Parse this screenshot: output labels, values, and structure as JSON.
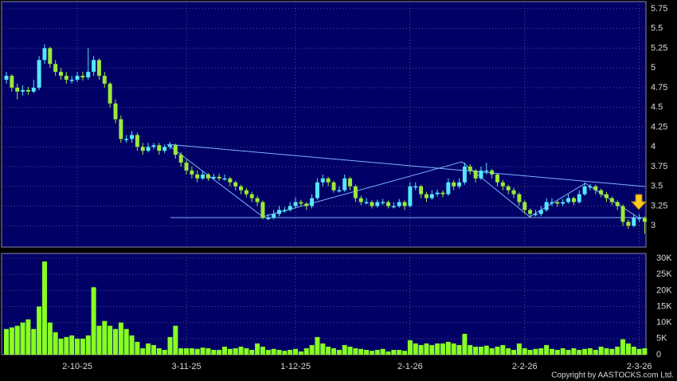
{
  "chart_data": {
    "type": "candlestick",
    "copyright": "Copyright by AASTOCKS.com Ltd.",
    "up_color": "#55e6ff",
    "down_color": "#9be83a",
    "volume_color": "#88ff22",
    "categories": [
      null,
      null,
      null,
      null,
      null,
      null,
      null,
      null,
      null,
      null,
      null,
      null,
      null,
      "2-10-25",
      null,
      null,
      null,
      null,
      null,
      null,
      null,
      null,
      null,
      null,
      null,
      null,
      null,
      null,
      null,
      null,
      null,
      null,
      null,
      "3-11-25",
      null,
      null,
      null,
      null,
      null,
      null,
      null,
      null,
      null,
      null,
      null,
      null,
      null,
      null,
      null,
      null,
      null,
      null,
      null,
      "1-12-25",
      null,
      null,
      null,
      null,
      null,
      null,
      null,
      null,
      null,
      null,
      null,
      null,
      null,
      null,
      null,
      null,
      null,
      null,
      null,
      null,
      "2-1-26",
      null,
      null,
      null,
      null,
      null,
      null,
      null,
      null,
      null,
      null,
      null,
      null,
      null,
      null,
      null,
      null,
      null,
      null,
      null,
      null,
      "2-2-26",
      null,
      null,
      null,
      null,
      null,
      null,
      null,
      null,
      null,
      null,
      null,
      null,
      null,
      null,
      null,
      null,
      null,
      null,
      null,
      null,
      "2-3-26",
      null
    ],
    "ohlc": [
      [
        4.85,
        4.95,
        4.8,
        4.9
      ],
      [
        4.9,
        4.92,
        4.7,
        4.75
      ],
      [
        4.75,
        4.8,
        4.6,
        4.7
      ],
      [
        4.7,
        4.78,
        4.65,
        4.72
      ],
      [
        4.72,
        4.76,
        4.66,
        4.7
      ],
      [
        4.7,
        4.85,
        4.68,
        4.75
      ],
      [
        4.75,
        5.15,
        4.72,
        5.1
      ],
      [
        5.1,
        5.3,
        5.05,
        5.25
      ],
      [
        5.25,
        5.27,
        5.0,
        5.05
      ],
      [
        5.05,
        5.1,
        4.9,
        4.95
      ],
      [
        4.95,
        5.0,
        4.85,
        4.9
      ],
      [
        4.9,
        4.95,
        4.8,
        4.85
      ],
      [
        4.85,
        4.9,
        4.8,
        4.85
      ],
      [
        4.85,
        4.95,
        4.82,
        4.9
      ],
      [
        4.9,
        4.95,
        4.84,
        4.88
      ],
      [
        4.88,
        5.25,
        4.85,
        4.95
      ],
      [
        4.95,
        5.15,
        4.9,
        5.1
      ],
      [
        5.1,
        5.12,
        4.85,
        4.9
      ],
      [
        4.9,
        4.95,
        4.75,
        4.8
      ],
      [
        4.8,
        4.82,
        4.5,
        4.55
      ],
      [
        4.55,
        4.6,
        4.3,
        4.35
      ],
      [
        4.35,
        4.4,
        4.05,
        4.1
      ],
      [
        4.1,
        4.15,
        4.05,
        4.1
      ],
      [
        4.1,
        4.2,
        4.05,
        4.15
      ],
      [
        4.15,
        4.18,
        3.95,
        4.0
      ],
      [
        4.0,
        4.05,
        3.9,
        3.95
      ],
      [
        3.95,
        4.05,
        3.93,
        4.0
      ],
      [
        4.0,
        4.05,
        3.97,
        4.02
      ],
      [
        4.02,
        4.05,
        3.9,
        3.95
      ],
      [
        3.95,
        4.03,
        3.92,
        4.0
      ],
      [
        4.0,
        4.06,
        3.97,
        4.02
      ],
      [
        4.02,
        4.04,
        3.85,
        3.9
      ],
      [
        3.9,
        3.93,
        3.75,
        3.8
      ],
      [
        3.8,
        3.84,
        3.65,
        3.7
      ],
      [
        3.7,
        3.75,
        3.6,
        3.65
      ],
      [
        3.65,
        3.7,
        3.55,
        3.6
      ],
      [
        3.6,
        3.7,
        3.58,
        3.65
      ],
      [
        3.65,
        3.67,
        3.57,
        3.6
      ],
      [
        3.6,
        3.66,
        3.58,
        3.62
      ],
      [
        3.62,
        3.66,
        3.57,
        3.6
      ],
      [
        3.6,
        3.65,
        3.57,
        3.6
      ],
      [
        3.6,
        3.62,
        3.5,
        3.55
      ],
      [
        3.55,
        3.57,
        3.45,
        3.5
      ],
      [
        3.5,
        3.52,
        3.4,
        3.45
      ],
      [
        3.45,
        3.48,
        3.36,
        3.4
      ],
      [
        3.4,
        3.43,
        3.3,
        3.35
      ],
      [
        3.35,
        3.38,
        3.25,
        3.3
      ],
      [
        3.3,
        3.32,
        3.08,
        3.1
      ],
      [
        3.1,
        3.15,
        3.07,
        3.1
      ],
      [
        3.1,
        3.2,
        3.08,
        3.15
      ],
      [
        3.15,
        3.25,
        3.12,
        3.2
      ],
      [
        3.2,
        3.24,
        3.16,
        3.2
      ],
      [
        3.2,
        3.3,
        3.18,
        3.25
      ],
      [
        3.25,
        3.36,
        3.22,
        3.3
      ],
      [
        3.3,
        3.33,
        3.25,
        3.28
      ],
      [
        3.28,
        3.3,
        3.2,
        3.25
      ],
      [
        3.25,
        3.4,
        3.22,
        3.35
      ],
      [
        3.35,
        3.6,
        3.33,
        3.55
      ],
      [
        3.55,
        3.65,
        3.5,
        3.6
      ],
      [
        3.6,
        3.62,
        3.5,
        3.55
      ],
      [
        3.55,
        3.57,
        3.42,
        3.45
      ],
      [
        3.45,
        3.5,
        3.42,
        3.45
      ],
      [
        3.45,
        3.65,
        3.43,
        3.6
      ],
      [
        3.6,
        3.62,
        3.45,
        3.5
      ],
      [
        3.5,
        3.52,
        3.3,
        3.35
      ],
      [
        3.35,
        3.38,
        3.26,
        3.3
      ],
      [
        3.3,
        3.35,
        3.27,
        3.3
      ],
      [
        3.3,
        3.32,
        3.22,
        3.25
      ],
      [
        3.25,
        3.33,
        3.23,
        3.3
      ],
      [
        3.3,
        3.34,
        3.26,
        3.3
      ],
      [
        3.3,
        3.32,
        3.22,
        3.25
      ],
      [
        3.25,
        3.3,
        3.22,
        3.25
      ],
      [
        3.25,
        3.34,
        3.23,
        3.3
      ],
      [
        3.3,
        3.32,
        3.2,
        3.25
      ],
      [
        3.25,
        3.55,
        3.23,
        3.5
      ],
      [
        3.5,
        3.55,
        3.45,
        3.5
      ],
      [
        3.5,
        3.52,
        3.35,
        3.4
      ],
      [
        3.4,
        3.43,
        3.3,
        3.35
      ],
      [
        3.35,
        3.45,
        3.33,
        3.4
      ],
      [
        3.4,
        3.46,
        3.37,
        3.42
      ],
      [
        3.42,
        3.45,
        3.36,
        3.4
      ],
      [
        3.4,
        3.6,
        3.38,
        3.55
      ],
      [
        3.55,
        3.58,
        3.45,
        3.5
      ],
      [
        3.5,
        3.6,
        3.47,
        3.55
      ],
      [
        3.55,
        3.8,
        3.52,
        3.75
      ],
      [
        3.75,
        3.78,
        3.65,
        3.7
      ],
      [
        3.7,
        3.72,
        3.55,
        3.6
      ],
      [
        3.6,
        3.75,
        3.58,
        3.7
      ],
      [
        3.7,
        3.8,
        3.65,
        3.7
      ],
      [
        3.7,
        3.72,
        3.6,
        3.65
      ],
      [
        3.65,
        3.67,
        3.5,
        3.55
      ],
      [
        3.55,
        3.58,
        3.45,
        3.5
      ],
      [
        3.5,
        3.52,
        3.4,
        3.45
      ],
      [
        3.45,
        3.48,
        3.35,
        3.4
      ],
      [
        3.4,
        3.42,
        3.25,
        3.3
      ],
      [
        3.3,
        3.32,
        3.15,
        3.2
      ],
      [
        3.2,
        3.22,
        3.1,
        3.15
      ],
      [
        3.15,
        3.2,
        3.12,
        3.15
      ],
      [
        3.15,
        3.25,
        3.12,
        3.2
      ],
      [
        3.2,
        3.35,
        3.18,
        3.3
      ],
      [
        3.3,
        3.35,
        3.25,
        3.3
      ],
      [
        3.3,
        3.32,
        3.24,
        3.28
      ],
      [
        3.28,
        3.34,
        3.25,
        3.3
      ],
      [
        3.3,
        3.4,
        3.28,
        3.35
      ],
      [
        3.35,
        3.37,
        3.26,
        3.3
      ],
      [
        3.3,
        3.45,
        3.28,
        3.4
      ],
      [
        3.4,
        3.55,
        3.38,
        3.5
      ],
      [
        3.5,
        3.53,
        3.45,
        3.5
      ],
      [
        3.5,
        3.52,
        3.4,
        3.45
      ],
      [
        3.45,
        3.47,
        3.36,
        3.4
      ],
      [
        3.4,
        3.43,
        3.3,
        3.35
      ],
      [
        3.35,
        3.37,
        3.26,
        3.3
      ],
      [
        3.3,
        3.32,
        3.2,
        3.25
      ],
      [
        3.25,
        3.27,
        3.0,
        3.05
      ],
      [
        3.05,
        3.08,
        2.96,
        3.0
      ],
      [
        3.0,
        3.15,
        2.98,
        3.1
      ],
      [
        3.1,
        3.15,
        3.05,
        3.1
      ],
      [
        3.1,
        3.12,
        2.9,
        3.05
      ]
    ],
    "volume": [
      8000,
      8500,
      9000,
      10000,
      11000,
      8000,
      15000,
      29000,
      10000,
      7000,
      5000,
      5500,
      6000,
      5000,
      5000,
      6000,
      21000,
      9000,
      10500,
      9000,
      8000,
      10000,
      8000,
      6000,
      4000,
      2000,
      3500,
      3000,
      2000,
      1500,
      5500,
      9000,
      2000,
      2000,
      2000,
      1800,
      2200,
      2000,
      1500,
      1500,
      2500,
      1800,
      2000,
      2500,
      2000,
      1500,
      3500,
      2500,
      1500,
      1800,
      1500,
      1200,
      1500,
      1800,
      1000,
      2000,
      3000,
      5500,
      3500,
      2500,
      2000,
      1500,
      3000,
      2500,
      2000,
      1800,
      1500,
      1200,
      1500,
      1800,
      1000,
      1500,
      1500,
      1200,
      4500,
      3500,
      3000,
      3500,
      3000,
      3500,
      3500,
      4000,
      3500,
      3000,
      6500,
      3000,
      2500,
      2500,
      2800,
      2000,
      2500,
      3000,
      2000,
      1500,
      3500,
      2000,
      1500,
      1800,
      2000,
      3000,
      1800,
      1500,
      2000,
      1500,
      2000,
      1500,
      1800,
      2000,
      1500,
      2500,
      2000,
      1800,
      2500,
      4800,
      3500,
      2500,
      1800,
      2000
    ],
    "ylim": [
      2.73,
      5.84
    ],
    "yticks": [
      3,
      3.25,
      3.5,
      3.75,
      4,
      4.25,
      4.5,
      4.75,
      5,
      5.25,
      5.5,
      5.75
    ],
    "y2lim": [
      0,
      31500
    ],
    "y2ticks": [
      0,
      {
        "value": 5000,
        "label": "5K"
      },
      {
        "value": 10000,
        "label": "10K"
      },
      {
        "value": 15000,
        "label": "15K"
      },
      {
        "value": 20000,
        "label": "20K"
      },
      {
        "value": 25000,
        "label": "25K"
      },
      {
        "value": 30000,
        "label": "30K"
      }
    ],
    "grid": true
  }
}
